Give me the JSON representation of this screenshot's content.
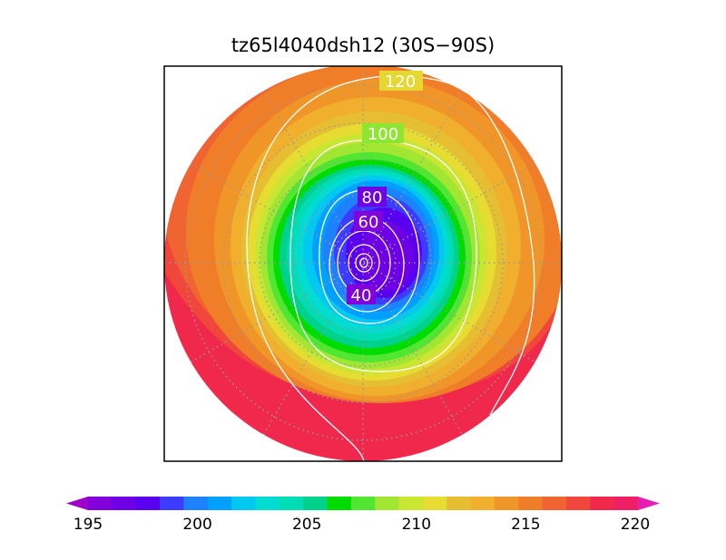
{
  "chart_data": {
    "type": "heatmap",
    "title": "tz65l4040dsh12 (30S−90S)",
    "projection": "south-polar-stereographic",
    "latitude_range": [
      "30S",
      "90S"
    ],
    "grid": true,
    "filled_field": {
      "min": 195,
      "max": 220,
      "step": 1,
      "extend": "both",
      "colorbar_ticks": [
        "195",
        "200",
        "205",
        "210",
        "215",
        "220"
      ],
      "colors": [
        "#a000c8",
        "#8200dc",
        "#6e00e6",
        "#5a00f0",
        "#3c3cff",
        "#1e82ff",
        "#00a0ff",
        "#00c8f0",
        "#00dcd2",
        "#00dcb4",
        "#00d28c",
        "#00dc00",
        "#50e632",
        "#a0e632",
        "#c8e632",
        "#e6dc32",
        "#e6be32",
        "#f0af2d",
        "#f09628",
        "#f07d28",
        "#f06432",
        "#f0463c",
        "#f0284b",
        "#f01e64",
        "#f01ea0",
        "#e61eb4"
      ]
    },
    "contour_labels": [
      "120",
      "100",
      "80",
      "60",
      "40"
    ]
  }
}
